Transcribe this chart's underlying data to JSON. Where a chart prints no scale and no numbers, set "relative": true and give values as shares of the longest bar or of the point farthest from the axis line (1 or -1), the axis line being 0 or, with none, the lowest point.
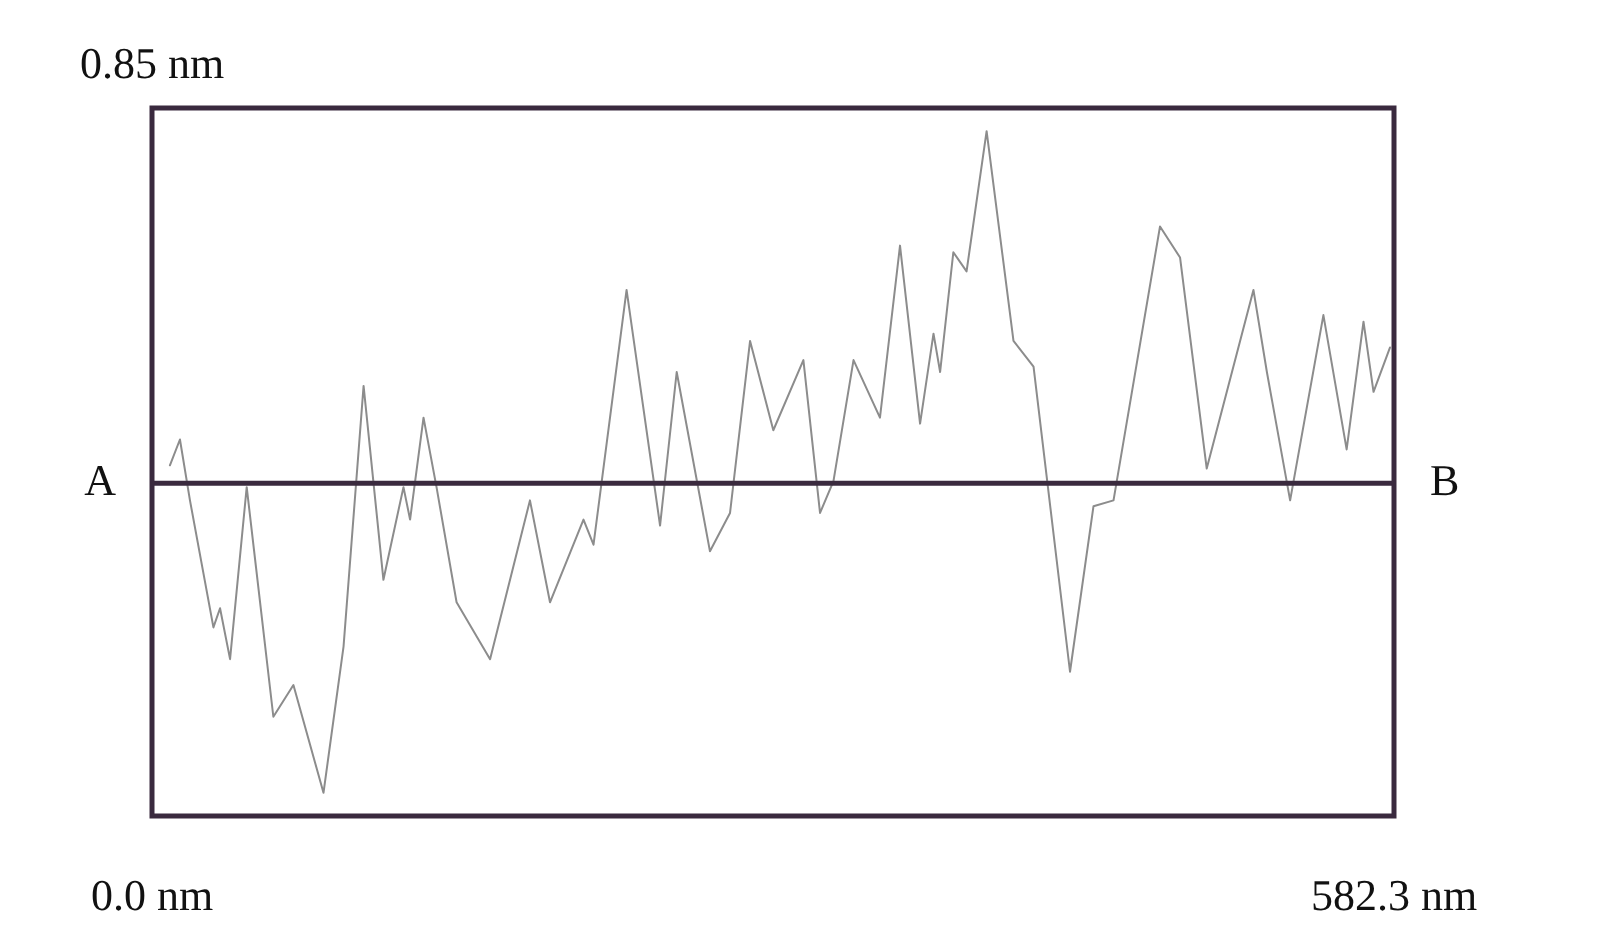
{
  "chart_data": {
    "type": "line",
    "relative": true,
    "x": [
      8.4,
      13.1,
      17.8,
      28.8,
      31.9,
      36.6,
      44.4,
      56.9,
      66.3,
      80.4,
      89.8,
      99.2,
      108.5,
      117.9,
      121.0,
      127.3,
      133.4,
      142.8,
      158.5,
      177.2,
      186.6,
      202.3,
      207.0,
      222.5,
      238.2,
      246.0,
      261.6,
      271.0,
      280.4,
      291.3,
      305.4,
      313.2,
      319.5,
      328.9,
      341.3,
      350.7,
      360.1,
      366.4,
      369.5,
      375.7,
      381.9,
      391.3,
      403.9,
      413.3,
      430.4,
      441.4,
      450.8,
      472.6,
      482.0,
      494.5,
      516.4,
      522.7,
      533.6,
      549.2,
      560.1,
      568.0,
      572.7,
      580.4
    ],
    "series": [
      {
        "color": "#8c8c8c",
        "values": [
          0.495,
          0.534,
          0.442,
          0.25,
          0.279,
          0.202,
          0.462,
          0.115,
          0.163,
          0,
          0.221,
          0.615,
          0.322,
          0.462,
          0.413,
          0.567,
          0.462,
          0.288,
          0.202,
          0.442,
          0.288,
          0.413,
          0.375,
          0.76,
          0.404,
          0.636,
          0.365,
          0.423,
          0.683,
          0.548,
          0.654,
          0.423,
          0.471,
          0.654,
          0.567,
          0.827,
          0.558,
          0.694,
          0.636,
          0.817,
          0.788,
          1,
          0.683,
          0.644,
          0.183,
          0.433,
          0.442,
          0.856,
          0.809,
          0.49,
          0.76,
          0.636,
          0.442,
          0.722,
          0.519,
          0.712,
          0.606,
          0.673
        ]
      }
    ],
    "xlim": [
      0,
      582.3
    ],
    "xticks": [
      {
        "value": 0,
        "label": "0.0 nm"
      },
      {
        "value": 582.3,
        "label": "582.3 nm"
      }
    ],
    "ref_lines": [
      {
        "axis": "y",
        "value": 0.468,
        "color": "#3a2a3e"
      }
    ],
    "annotations": [
      "0.85 nm",
      {
        "text": "A",
        "x": 0,
        "y": 0.468
      },
      {
        "text": "B",
        "x": 582.3,
        "y": 0.468
      }
    ],
    "legend": false,
    "marker": "none",
    "line_style": "solid"
  }
}
